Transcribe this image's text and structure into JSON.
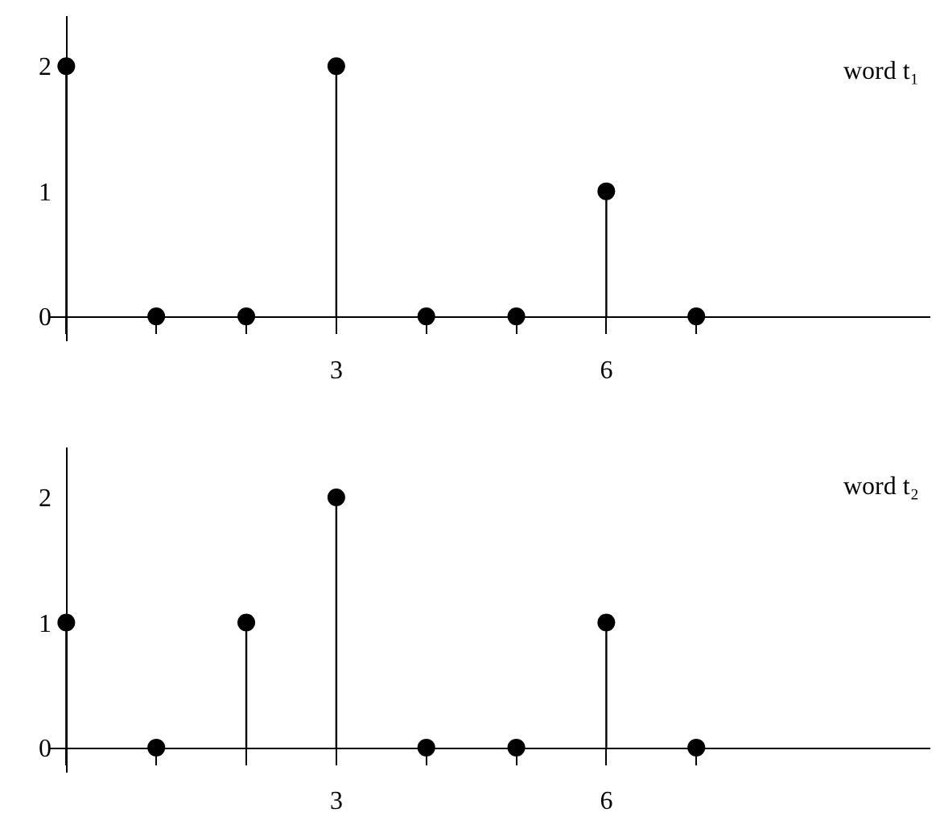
{
  "chart_data": [
    {
      "type": "lollipop",
      "x": [
        0,
        1,
        2,
        3,
        4,
        5,
        6,
        7
      ],
      "values": [
        2,
        0,
        0,
        2,
        0,
        0,
        1,
        0
      ],
      "color": "#000000",
      "marker": "circle",
      "xlim": [
        -0.2,
        9.6
      ],
      "ylim": [
        -0.2,
        2.4
      ],
      "xticks": [
        {
          "value": 0,
          "label": null
        },
        {
          "value": 1,
          "label": null
        },
        {
          "value": 2,
          "label": null
        },
        3,
        {
          "value": 4,
          "label": null
        },
        {
          "value": 5,
          "label": null
        },
        6,
        {
          "value": 7,
          "label": null
        }
      ],
      "yticks": [
        0,
        1,
        2
      ],
      "legend": false,
      "annotations": [
        "word t₁"
      ]
    },
    {
      "type": "lollipop",
      "x": [
        0,
        1,
        2,
        3,
        4,
        5,
        6,
        7
      ],
      "values": [
        1,
        0,
        1,
        2,
        0,
        0,
        1,
        0
      ],
      "color": "#000000",
      "marker": "circle",
      "xlim": [
        -0.2,
        9.6
      ],
      "ylim": [
        -0.2,
        2.4
      ],
      "xticks": [
        {
          "value": 0,
          "label": null
        },
        {
          "value": 1,
          "label": null
        },
        {
          "value": 2,
          "label": null
        },
        3,
        {
          "value": 4,
          "label": null
        },
        {
          "value": 5,
          "label": null
        },
        6,
        {
          "value": 7,
          "label": null
        }
      ],
      "yticks": [
        0,
        1,
        2
      ],
      "legend": false,
      "annotations": [
        "word t₂"
      ]
    }
  ]
}
